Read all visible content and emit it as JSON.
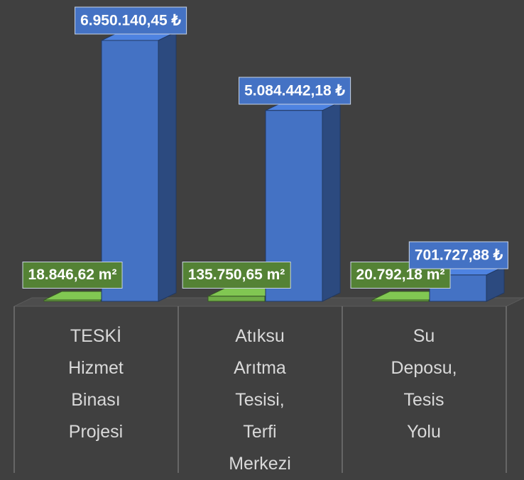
{
  "chart_data": {
    "type": "bar3d",
    "categories": [
      "TESKİ Hizmet Binası Projesi",
      "Atıksu Arıtma Tesisi, Terfi Merkezi",
      "Su Deposu, Tesis Yolu"
    ],
    "series": [
      {
        "color": "#70ad47",
        "values": [
          18846.62,
          135750.65,
          20792.18
        ],
        "value_labels": [
          "18.846,62 m²",
          "135.750,65 m²",
          "20.792,18 m²"
        ]
      },
      {
        "color": "#4472c4",
        "values": [
          6950140.45,
          5084442.18,
          701727.88
        ],
        "value_labels": [
          "6.950.140,45 ₺",
          "5.084.442,18 ₺",
          "701.727,88 ₺"
        ]
      }
    ]
  }
}
